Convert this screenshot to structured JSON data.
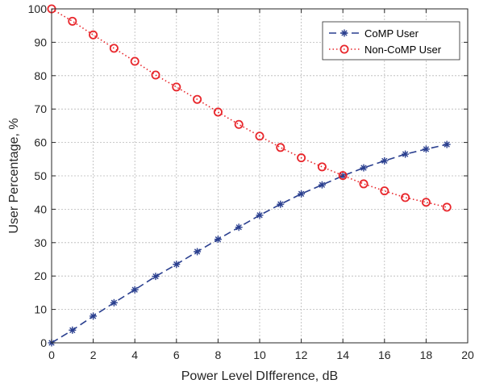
{
  "chart_data": {
    "type": "line",
    "xlabel": "Power Level DIfference, dB",
    "ylabel": "User Percentage, %",
    "xlim": [
      0,
      20
    ],
    "ylim": [
      0,
      100
    ],
    "xticks": [
      "0",
      "2",
      "4",
      "6",
      "8",
      "10",
      "12",
      "14",
      "16",
      "18",
      "20"
    ],
    "yticks": [
      "0",
      "10",
      "20",
      "30",
      "40",
      "50",
      "60",
      "70",
      "80",
      "90",
      "100"
    ],
    "grid": true,
    "legend_position": "top-right",
    "x": [
      0,
      1,
      2,
      3,
      4,
      5,
      6,
      7,
      8,
      9,
      10,
      11,
      12,
      13,
      14,
      15,
      16,
      17,
      18,
      19
    ],
    "series": [
      {
        "name": "CoMP User",
        "color": "#2a3f8f",
        "line_style": "dashed",
        "marker": "asterisk",
        "values": [
          0,
          3.8,
          8.0,
          12.0,
          15.9,
          19.9,
          23.5,
          27.3,
          31.0,
          34.6,
          38.2,
          41.5,
          44.6,
          47.3,
          50.0,
          52.4,
          54.5,
          56.5,
          58.0,
          59.4
        ]
      },
      {
        "name": "Non-CoMP User",
        "color": "#e8262b",
        "line_style": "dotted",
        "marker": "circle",
        "values": [
          100,
          96.3,
          92.2,
          88.2,
          84.3,
          80.2,
          76.6,
          72.9,
          69.1,
          65.4,
          61.9,
          58.5,
          55.4,
          52.7,
          50.1,
          47.6,
          45.5,
          43.5,
          42.1,
          40.6
        ]
      }
    ]
  }
}
